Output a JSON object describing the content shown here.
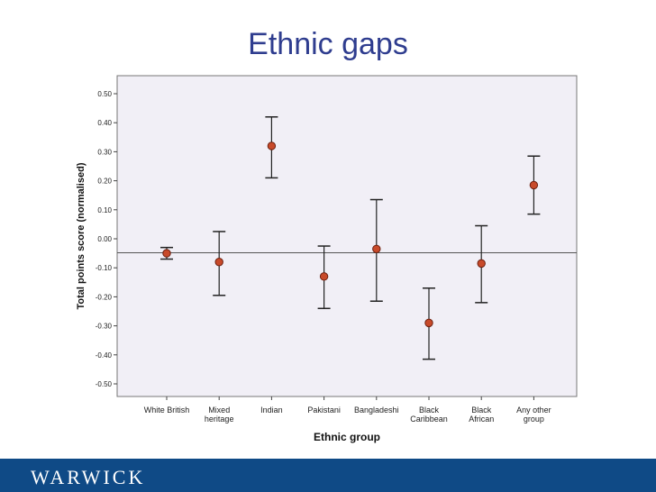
{
  "slide": {
    "title": "Ethnic gaps"
  },
  "footer": {
    "logo_text": "WARWICK"
  },
  "chart_data": {
    "type": "scatter",
    "subtype": "error-bar",
    "title": "",
    "xlabel": "Ethnic group",
    "ylabel": "Total points score (normalised)",
    "ylim": [
      -0.55,
      0.55
    ],
    "yticks": [
      "0.50",
      "0.40",
      "0.30",
      "0.20",
      "0.10",
      "0.00",
      "-0.10",
      "-0.20",
      "-0.30",
      "-0.40",
      "-0.50"
    ],
    "ytick_values": [
      0.5,
      0.4,
      0.3,
      0.2,
      0.1,
      0.0,
      -0.1,
      -0.2,
      -0.3,
      -0.4,
      -0.5
    ],
    "categories": [
      [
        "White British"
      ],
      [
        "Mixed",
        "heritage"
      ],
      [
        "Indian"
      ],
      [
        "Pakistani"
      ],
      [
        "Bangladeshi"
      ],
      [
        "Black",
        "Caribbean"
      ],
      [
        "Black",
        "African"
      ],
      [
        "Any other",
        "group"
      ]
    ],
    "means": [
      -0.05,
      -0.08,
      0.32,
      -0.13,
      -0.035,
      -0.29,
      -0.085,
      0.185
    ],
    "lower": [
      -0.07,
      -0.195,
      0.21,
      -0.24,
      -0.215,
      -0.415,
      -0.22,
      0.085
    ],
    "upper": [
      -0.03,
      0.025,
      0.42,
      -0.025,
      0.135,
      -0.17,
      0.045,
      0.285
    ],
    "reference_line": -0.048,
    "grid": false,
    "colors": {
      "plot_bg": "#f1eff6",
      "marker": "#c84a2a",
      "marker_edge": "#6b1f0f",
      "errorbar": "#222222",
      "refline": "#555555"
    }
  }
}
